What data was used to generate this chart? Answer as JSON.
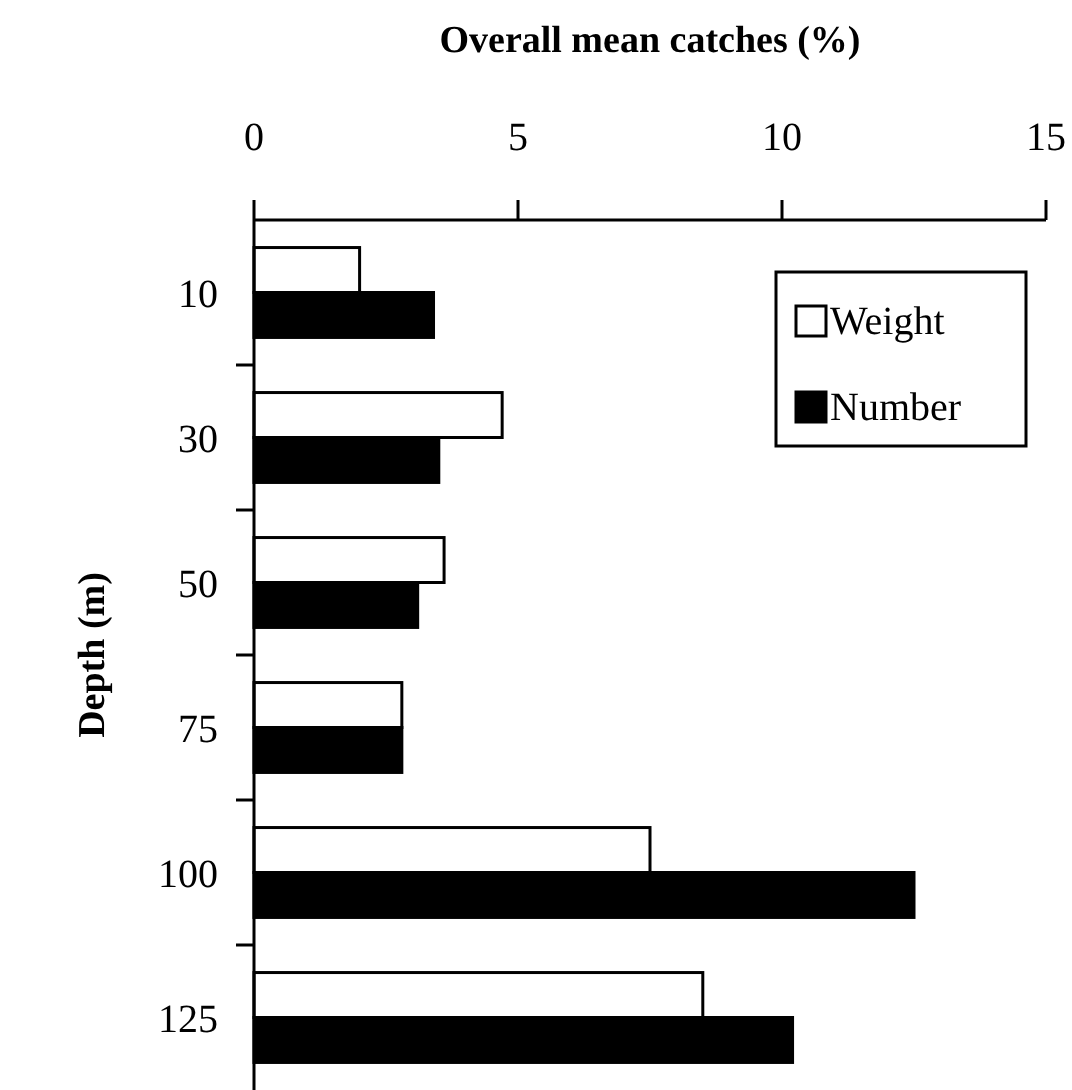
{
  "chart_data": {
    "type": "bar",
    "orientation": "horizontal",
    "xlabel": "Overall mean catches (%)",
    "ylabel": "Depth (m)",
    "categories": [
      "10",
      "30",
      "50",
      "75",
      "100",
      "125"
    ],
    "series": [
      {
        "name": "Weight",
        "color": "#ffffff",
        "values": [
          2.0,
          4.7,
          3.6,
          2.8,
          7.5,
          8.5
        ]
      },
      {
        "name": "Number",
        "color": "#000000",
        "values": [
          3.4,
          3.5,
          3.1,
          2.8,
          12.5,
          10.2
        ]
      }
    ],
    "xlim": [
      0,
      15
    ],
    "xticks": [
      0,
      5,
      10,
      15
    ],
    "grid": false,
    "legend": "top right"
  }
}
